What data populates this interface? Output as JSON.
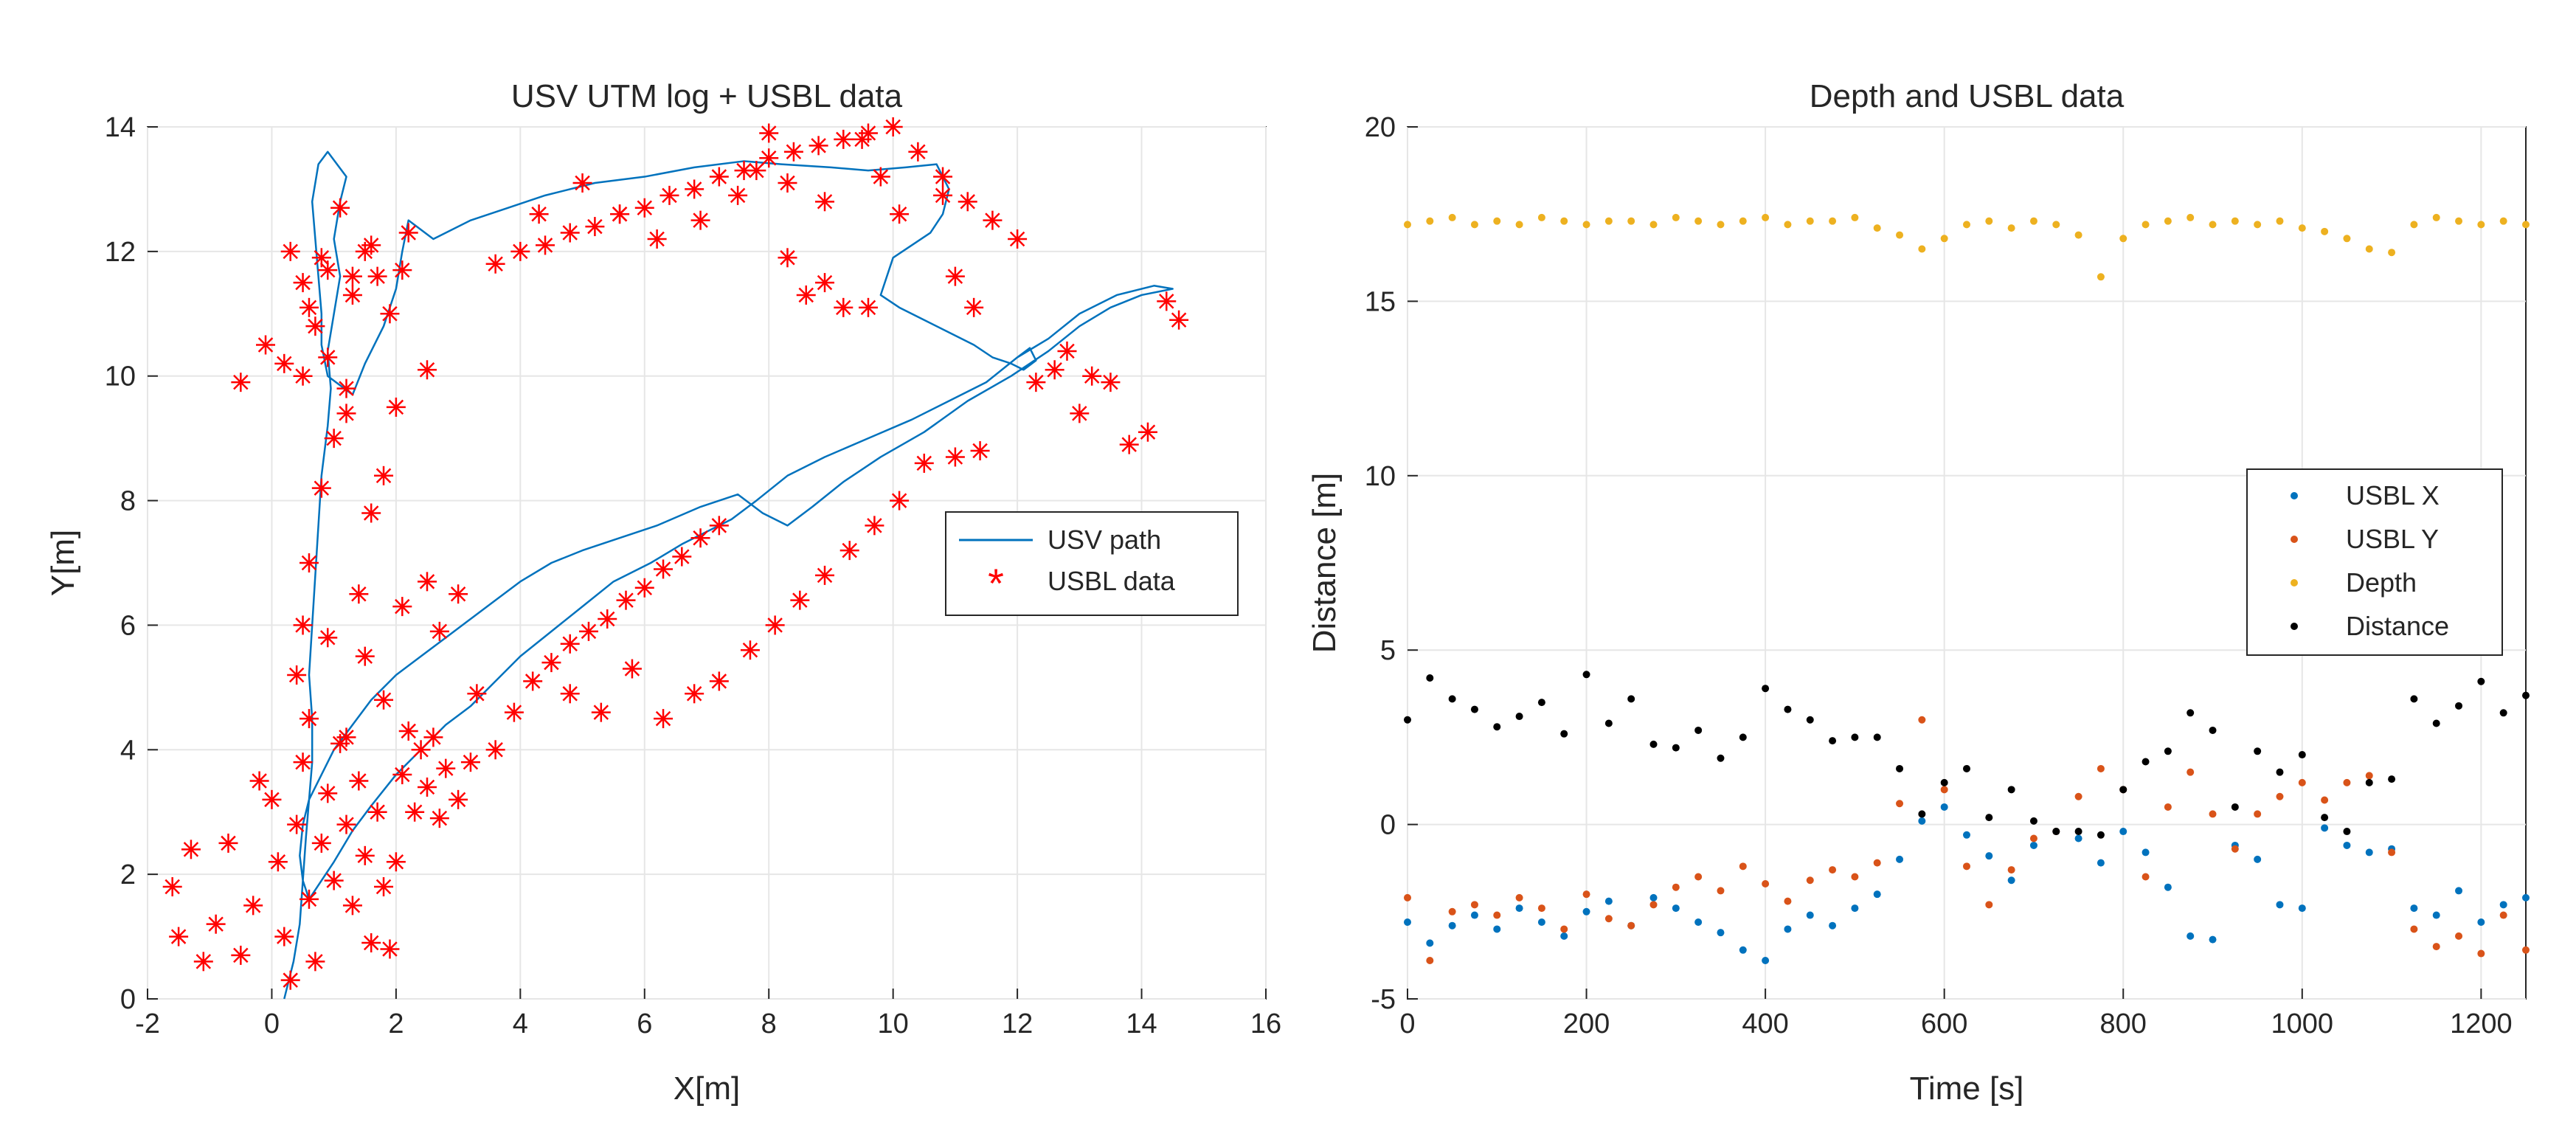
{
  "chart_data": [
    {
      "type": "scatter",
      "title": "USV UTM log + USBL data",
      "xlabel": "X[m]",
      "ylabel": "Y[m]",
      "xlim": [
        -2,
        16
      ],
      "ylim": [
        0,
        14
      ],
      "xticks": [
        "-2",
        "0",
        "2",
        "4",
        "6",
        "8",
        "10",
        "12",
        "14",
        "16"
      ],
      "yticks": [
        "0",
        "2",
        "4",
        "6",
        "8",
        "10",
        "12",
        "14"
      ],
      "grid": true,
      "legend_placement": "right-middle",
      "series": [
        {
          "name": "USV path",
          "kind": "line",
          "color": "#0072BD",
          "x": [
            0.2,
            0.35,
            0.45,
            0.5,
            0.55,
            0.6,
            0.65,
            0.65,
            0.6,
            0.65,
            0.7,
            0.75,
            0.8,
            0.9,
            0.95,
            0.9,
            1.0,
            1.1,
            1.0,
            1.1,
            1.2,
            0.9,
            0.75,
            0.65,
            0.7,
            0.75,
            0.8,
            0.8,
            0.9,
            1.3,
            1.5,
            1.8,
            2.0,
            2.1,
            2.2,
            2.6,
            3.2,
            3.8,
            4.4,
            5.2,
            6.0,
            6.8,
            7.6,
            8.2,
            9.0,
            9.6,
            10.2,
            10.7,
            10.9,
            10.8,
            10.6,
            10.3,
            10.0,
            9.9,
            9.8,
            10.1,
            10.5,
            10.9,
            11.3,
            11.6,
            11.9,
            12.1,
            12.3,
            12.2,
            12.0,
            11.5,
            10.9,
            10.3,
            9.6,
            8.9,
            8.3,
            7.8,
            7.4,
            7.0,
            6.6,
            6.1,
            5.5,
            5.0,
            4.5,
            4.0,
            3.6,
            3.2,
            2.8,
            2.4,
            2.0,
            1.6,
            1.3,
            1.0,
            0.8,
            0.6,
            0.5,
            0.45,
            0.5,
            0.6,
            0.8,
            1.0,
            1.3,
            1.6,
            2.0,
            2.4,
            2.8,
            3.2,
            3.6,
            4.0,
            4.5,
            5.0,
            5.6,
            6.2,
            6.9,
            7.5,
            7.9,
            8.3,
            8.7,
            9.2,
            9.8,
            10.5,
            11.2,
            11.9,
            12.5,
            13.0,
            13.5,
            14.0,
            14.5,
            14.2,
            13.6,
            13.0,
            12.5,
            12.0
          ],
          "y": [
            0.0,
            0.6,
            1.2,
            1.9,
            2.6,
            3.2,
            3.8,
            4.5,
            5.2,
            6.0,
            6.8,
            7.6,
            8.4,
            9.2,
            9.8,
            10.4,
            11.0,
            11.6,
            12.2,
            12.8,
            13.2,
            13.6,
            13.4,
            12.8,
            12.2,
            11.6,
            11.0,
            10.5,
            10.0,
            9.7,
            10.2,
            10.8,
            11.4,
            12.0,
            12.5,
            12.2,
            12.5,
            12.7,
            12.9,
            13.1,
            13.2,
            13.35,
            13.45,
            13.4,
            13.35,
            13.3,
            13.35,
            13.4,
            13.0,
            12.6,
            12.3,
            12.1,
            11.9,
            11.6,
            11.3,
            11.1,
            10.9,
            10.7,
            10.5,
            10.3,
            10.2,
            10.1,
            10.25,
            10.45,
            10.3,
            9.9,
            9.6,
            9.3,
            9.0,
            8.7,
            8.4,
            8.0,
            7.7,
            7.5,
            7.3,
            7.0,
            6.7,
            6.3,
            5.9,
            5.5,
            5.1,
            4.7,
            4.4,
            4.0,
            3.6,
            3.1,
            2.7,
            2.2,
            1.9,
            1.6,
            1.9,
            2.3,
            2.8,
            3.2,
            3.6,
            4.0,
            4.4,
            4.8,
            5.2,
            5.5,
            5.8,
            6.1,
            6.4,
            6.7,
            7.0,
            7.2,
            7.4,
            7.6,
            7.9,
            8.1,
            7.8,
            7.6,
            7.9,
            8.3,
            8.7,
            9.1,
            9.6,
            10.0,
            10.4,
            10.8,
            11.1,
            11.3,
            11.4,
            11.45,
            11.3,
            11.0,
            10.6,
            10.3
          ]
        },
        {
          "name": "USBL data",
          "kind": "markers",
          "marker": "*",
          "color": "#FF0000",
          "x": [
            -1.6,
            -1.5,
            -1.3,
            -1.1,
            -0.9,
            -0.7,
            -0.5,
            -0.3,
            -0.2,
            0.0,
            0.1,
            0.2,
            0.3,
            0.4,
            0.5,
            0.6,
            0.7,
            0.8,
            0.9,
            1.0,
            1.1,
            1.2,
            1.3,
            1.4,
            1.5,
            1.6,
            1.7,
            1.8,
            1.9,
            2.0,
            2.1,
            2.2,
            2.3,
            2.4,
            2.5,
            2.6,
            2.7,
            2.8,
            3.0,
            3.2,
            0.4,
            0.5,
            0.6,
            0.8,
            1.0,
            1.2,
            1.4,
            1.6,
            1.8,
            2.0,
            0.5,
            0.7,
            0.9,
            1.1,
            1.3,
            1.5,
            1.7,
            1.9,
            2.2,
            2.5,
            0.3,
            0.6,
            0.9,
            1.2,
            -0.5,
            -0.1,
            0.2,
            0.5,
            0.8,
            1.3,
            1.6,
            2.1,
            0.6,
            0.9,
            1.2,
            1.5,
            1.8,
            2.1,
            2.5,
            2.7,
            3.0,
            3.3,
            3.6,
            3.9,
            4.2,
            4.5,
            4.8,
            5.1,
            5.4,
            5.7,
            6.0,
            6.3,
            6.6,
            6.9,
            7.2,
            3.6,
            4.0,
            4.4,
            4.8,
            5.2,
            5.6,
            6.0,
            6.4,
            6.8,
            7.2,
            7.6,
            8.0,
            8.4,
            8.8,
            9.2,
            9.6,
            10.0,
            10.4,
            10.8,
            11.2,
            11.6,
            12.0,
            4.8,
            5.3,
            5.8,
            6.3,
            6.8,
            7.2,
            7.7,
            8.1,
            8.5,
            8.9,
            9.3,
            9.7,
            10.1,
            4.3,
            5.0,
            5.6,
            6.2,
            6.9,
            7.5,
            8.3,
            8.9,
            9.6,
            10.5,
            11.0,
            11.4,
            7.8,
            8.0,
            8.3,
            8.6,
            8.9,
            9.2,
            9.5,
            9.8,
            10.1,
            10.8,
            11.0,
            11.3,
            12.8,
            13.0,
            13.2,
            13.5,
            13.8,
            14.1,
            14.4,
            14.6,
            12.3,
            12.6
          ],
          "y": [
            1.8,
            1.0,
            2.4,
            0.6,
            1.2,
            2.5,
            0.7,
            1.5,
            3.5,
            3.2,
            2.2,
            1.0,
            0.3,
            2.8,
            3.8,
            1.6,
            0.6,
            2.5,
            3.3,
            1.9,
            4.1,
            2.8,
            1.5,
            3.5,
            2.3,
            0.9,
            3.0,
            1.8,
            0.8,
            2.2,
            3.6,
            4.3,
            3.0,
            4.0,
            3.4,
            4.2,
            2.9,
            3.7,
            3.2,
            3.8,
            5.2,
            6.0,
            7.0,
            8.2,
            9.0,
            9.8,
            6.5,
            7.8,
            8.4,
            9.5,
            10.0,
            10.8,
            11.7,
            12.7,
            11.3,
            12.0,
            11.6,
            11.0,
            12.3,
            10.1,
            12.0,
            11.1,
            10.3,
            9.4,
            9.9,
            10.5,
            10.2,
            11.5,
            11.9,
            11.6,
            12.1,
            11.7,
            4.5,
            5.8,
            4.2,
            5.5,
            4.8,
            6.3,
            6.7,
            5.9,
            6.5,
            4.9,
            4.0,
            4.6,
            5.1,
            5.4,
            5.7,
            5.9,
            6.1,
            6.4,
            6.6,
            6.9,
            7.1,
            7.4,
            7.6,
            11.8,
            12.0,
            12.1,
            12.3,
            12.4,
            12.6,
            12.7,
            12.9,
            13.0,
            13.2,
            13.3,
            13.5,
            13.6,
            13.7,
            13.8,
            13.9,
            14.0,
            13.6,
            13.2,
            12.8,
            12.5,
            12.2,
            4.9,
            4.6,
            5.3,
            4.5,
            4.9,
            5.1,
            5.6,
            6.0,
            6.4,
            6.8,
            7.2,
            7.6,
            8.0,
            12.6,
            13.1,
            12.6,
            12.2,
            12.5,
            12.9,
            11.9,
            11.5,
            11.1,
            8.6,
            8.7,
            8.8,
            13.3,
            13.9,
            13.1,
            11.3,
            12.8,
            11.1,
            13.8,
            13.2,
            12.6,
            12.9,
            11.6,
            11.1,
            10.4,
            9.4,
            10.0,
            9.9,
            8.9,
            9.1,
            11.2,
            10.9,
            9.9,
            10.1
          ]
        }
      ]
    },
    {
      "type": "scatter",
      "title": "Depth and USBL data",
      "xlabel": "Time [s]",
      "ylabel": "Distance [m]",
      "xlim": [
        0,
        1250
      ],
      "ylim": [
        -5,
        20
      ],
      "xticks": [
        "0",
        "200",
        "400",
        "600",
        "800",
        "1000",
        "1200"
      ],
      "yticks": [
        "-5",
        "0",
        "5",
        "10",
        "15",
        "20"
      ],
      "grid": true,
      "legend_placement": "right-middle",
      "x": [
        0,
        25,
        50,
        75,
        100,
        125,
        150,
        175,
        200,
        225,
        250,
        275,
        300,
        325,
        350,
        375,
        400,
        425,
        450,
        475,
        500,
        525,
        550,
        575,
        600,
        625,
        650,
        675,
        700,
        725,
        750,
        775,
        800,
        825,
        850,
        875,
        900,
        925,
        950,
        975,
        1000,
        1025,
        1050,
        1075,
        1100,
        1125,
        1150,
        1175,
        1200,
        1225,
        1250
      ],
      "series": [
        {
          "name": "USBL X",
          "color": "#0072BD",
          "values": [
            -2.8,
            -3.4,
            -2.9,
            -2.6,
            -3.0,
            -2.4,
            -2.8,
            -3.2,
            -2.5,
            -2.2,
            -2.9,
            -2.1,
            -2.4,
            -2.8,
            -3.1,
            -3.6,
            -3.9,
            -3.0,
            -2.6,
            -2.9,
            -2.4,
            -2.0,
            -1.0,
            0.1,
            0.5,
            -0.3,
            -0.9,
            -1.6,
            -0.6,
            -0.2,
            -0.4,
            -1.1,
            -0.2,
            -0.8,
            -1.8,
            -3.2,
            -3.3,
            -0.6,
            -1.0,
            -2.3,
            -2.4,
            -0.1,
            -0.6,
            -0.8,
            -0.7,
            -2.4,
            -2.6,
            -1.9,
            -2.8,
            -2.3,
            -2.1
          ]
        },
        {
          "name": "USBL Y",
          "color": "#D95319",
          "values": [
            -2.1,
            -3.9,
            -2.5,
            -2.3,
            -2.6,
            -2.1,
            -2.4,
            -3.0,
            -2.0,
            -2.7,
            -2.9,
            -2.3,
            -1.8,
            -1.5,
            -1.9,
            -1.2,
            -1.7,
            -2.2,
            -1.6,
            -1.3,
            -1.5,
            -1.1,
            0.6,
            3.0,
            1.0,
            -1.2,
            -2.3,
            -1.3,
            -0.4,
            -0.2,
            0.8,
            1.6,
            1.0,
            -1.5,
            0.5,
            1.5,
            0.3,
            -0.7,
            0.3,
            0.8,
            1.2,
            0.7,
            1.2,
            1.4,
            -0.8,
            -3.0,
            -3.5,
            -3.2,
            -3.7,
            -2.6,
            -3.6
          ]
        },
        {
          "name": "Depth",
          "color": "#EDB120",
          "values": [
            17.2,
            17.3,
            17.4,
            17.2,
            17.3,
            17.2,
            17.4,
            17.3,
            17.2,
            17.3,
            17.3,
            17.2,
            17.4,
            17.3,
            17.2,
            17.3,
            17.4,
            17.2,
            17.3,
            17.3,
            17.4,
            17.1,
            16.9,
            16.5,
            16.8,
            17.2,
            17.3,
            17.1,
            17.3,
            17.2,
            16.9,
            15.7,
            16.8,
            17.2,
            17.3,
            17.4,
            17.2,
            17.3,
            17.2,
            17.3,
            17.1,
            17.0,
            16.8,
            16.5,
            16.4,
            17.2,
            17.4,
            17.3,
            17.2,
            17.3,
            17.2
          ]
        },
        {
          "name": "Distance",
          "color": "#000000",
          "values": [
            3.0,
            4.2,
            3.6,
            3.3,
            2.8,
            3.1,
            3.5,
            2.6,
            4.3,
            2.9,
            3.6,
            2.3,
            2.2,
            2.7,
            1.9,
            2.5,
            3.9,
            3.3,
            3.0,
            2.4,
            2.5,
            2.5,
            1.6,
            0.3,
            1.2,
            1.6,
            0.2,
            1.0,
            0.1,
            -0.2,
            -0.2,
            -0.3,
            1.0,
            1.8,
            2.1,
            3.2,
            2.7,
            0.5,
            2.1,
            1.5,
            2.0,
            0.2,
            -0.2,
            1.2,
            1.3,
            3.6,
            2.9,
            3.4,
            4.1,
            3.2,
            3.7
          ]
        }
      ]
    }
  ]
}
